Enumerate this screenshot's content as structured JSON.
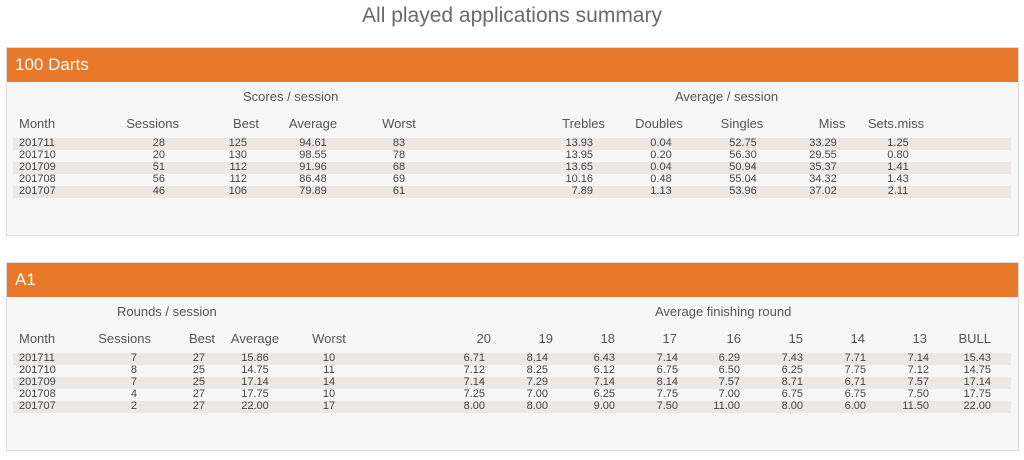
{
  "page_title": "All played applications summary",
  "panels": {
    "darts": {
      "title": "100 Darts",
      "group_left": "Scores / session",
      "group_right": "Average / session",
      "columns": [
        "Month",
        "Sessions",
        "Best",
        "Average",
        "Worst",
        "Trebles",
        "Doubles",
        "Singles",
        "Miss",
        "Sets.miss"
      ],
      "rows": [
        [
          "201711",
          "28",
          "125",
          "94.61",
          "83",
          "13.93",
          "0.04",
          "52.75",
          "33.29",
          "1.25"
        ],
        [
          "201710",
          "20",
          "130",
          "98.55",
          "78",
          "13.95",
          "0.20",
          "56.30",
          "29.55",
          "0.80"
        ],
        [
          "201709",
          "51",
          "112",
          "91.96",
          "68",
          "13.65",
          "0.04",
          "50.94",
          "35.37",
          "1.41"
        ],
        [
          "201708",
          "56",
          "112",
          "86.48",
          "69",
          "10.16",
          "0.48",
          "55.04",
          "34.32",
          "1.43"
        ],
        [
          "201707",
          "46",
          "106",
          "79.89",
          "61",
          "7.89",
          "1.13",
          "53.96",
          "37.02",
          "2.11"
        ]
      ]
    },
    "a1": {
      "title": "A1",
      "group_left": "Rounds / session",
      "group_right": "Average finishing round",
      "columns": [
        "Month",
        "Sessions",
        "Best",
        "Average",
        "Worst",
        "20",
        "19",
        "18",
        "17",
        "16",
        "15",
        "14",
        "13",
        "BULL"
      ],
      "rows": [
        [
          "201711",
          "7",
          "27",
          "15.86",
          "10",
          "6.71",
          "8.14",
          "6.43",
          "7.14",
          "6.29",
          "7.43",
          "7.71",
          "7.14",
          "15.43"
        ],
        [
          "201710",
          "8",
          "25",
          "14.75",
          "11",
          "7.12",
          "8.25",
          "6.12",
          "6.75",
          "6.50",
          "6.25",
          "7.75",
          "7.12",
          "14.75"
        ],
        [
          "201709",
          "7",
          "25",
          "17.14",
          "14",
          "7.14",
          "7.29",
          "7.14",
          "8.14",
          "7.57",
          "8.71",
          "6.71",
          "7.57",
          "17.14"
        ],
        [
          "201708",
          "4",
          "27",
          "17.75",
          "10",
          "7.25",
          "7.00",
          "6.25",
          "7.75",
          "7.00",
          "6.75",
          "6.75",
          "7.50",
          "17.75"
        ],
        [
          "201707",
          "2",
          "27",
          "22.00",
          "17",
          "8.00",
          "8.00",
          "9.00",
          "7.50",
          "11.00",
          "8.00",
          "6.00",
          "11.50",
          "22.00"
        ]
      ]
    }
  },
  "colors": {
    "header_bg": "#e8792a",
    "row_alt": "#ebe8e6",
    "panel_bg": "#f7f7f7"
  }
}
